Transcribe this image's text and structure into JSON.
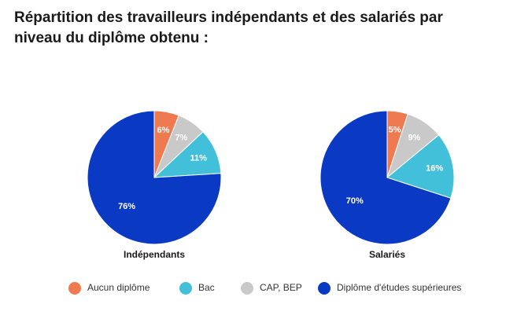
{
  "title": "Répartition des travailleurs indépendants et des salariés par niveau du diplôme obtenu :",
  "chart_data": [
    {
      "type": "pie",
      "label": "Indépendants",
      "categories": [
        "Aucun diplôme",
        "Bac",
        "CAP, BEP",
        "Diplôme d'études supérieures"
      ],
      "values": [
        6,
        11,
        7,
        76
      ],
      "value_labels": [
        "6%",
        "11%",
        "7%",
        "76%"
      ],
      "colors": [
        "#f07a50",
        "#42c0da",
        "#c9c9c9",
        "#0a3ac4"
      ]
    },
    {
      "type": "pie",
      "label": "Salariés",
      "categories": [
        "Aucun diplôme",
        "Bac",
        "CAP, BEP",
        "Diplôme d'études supérieures"
      ],
      "values": [
        5,
        16,
        9,
        70
      ],
      "value_labels": [
        "5%",
        "16%",
        "9%",
        "70%"
      ],
      "colors": [
        "#f07a50",
        "#42c0da",
        "#c9c9c9",
        "#0a3ac4"
      ]
    }
  ]
}
